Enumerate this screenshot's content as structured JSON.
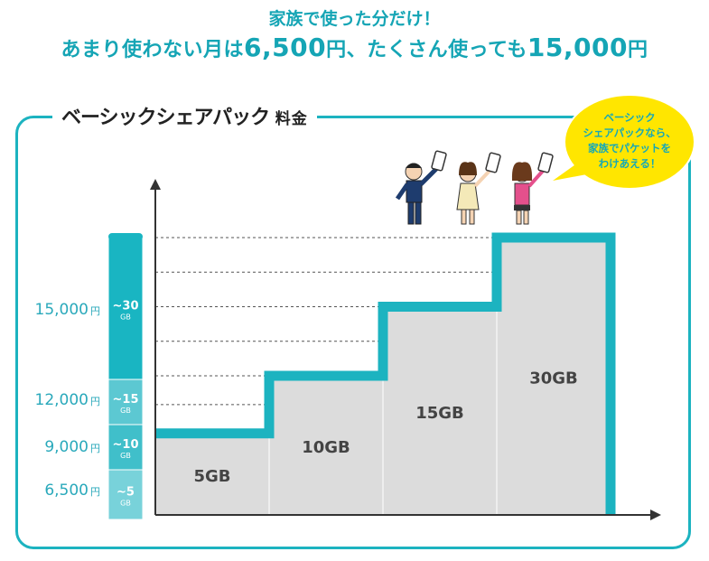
{
  "header": {
    "line1": "家族で使った分だけ！",
    "line2_prefix": "あまり使わない月は",
    "line2_low_price": "6,500",
    "line2_yen1": "円、",
    "line2_middle": "たくさん使っても",
    "line2_high_price": "15,000",
    "line2_yen2": "円"
  },
  "panel": {
    "title_main": "ベーシックシェアパック",
    "title_suffix": "料金"
  },
  "bubble": {
    "lines": [
      "ベーシック",
      "シェアパックなら、",
      "家族でパケットを",
      "わけあえる！"
    ]
  },
  "colors": {
    "accent": "#1cb3c0",
    "accent_text": "#15a5b5",
    "bar_fill": "#dcdcdc",
    "axis": "#333333",
    "bubble_fill": "#ffe600",
    "price_text": "#2aa9bb"
  },
  "chart_data": {
    "type": "bar",
    "categories": [
      "5GB",
      "10GB",
      "15GB",
      "30GB"
    ],
    "values": [
      6500,
      9000,
      12000,
      15000
    ],
    "price_labels": [
      "6,500",
      "9,000",
      "12,000",
      "15,000"
    ],
    "price_unit": "円",
    "tiers": [
      "~5",
      "~10",
      "~15",
      "~30"
    ],
    "tier_unit": "GB",
    "ylim": [
      5000,
      15000
    ],
    "grid": "dashed"
  }
}
